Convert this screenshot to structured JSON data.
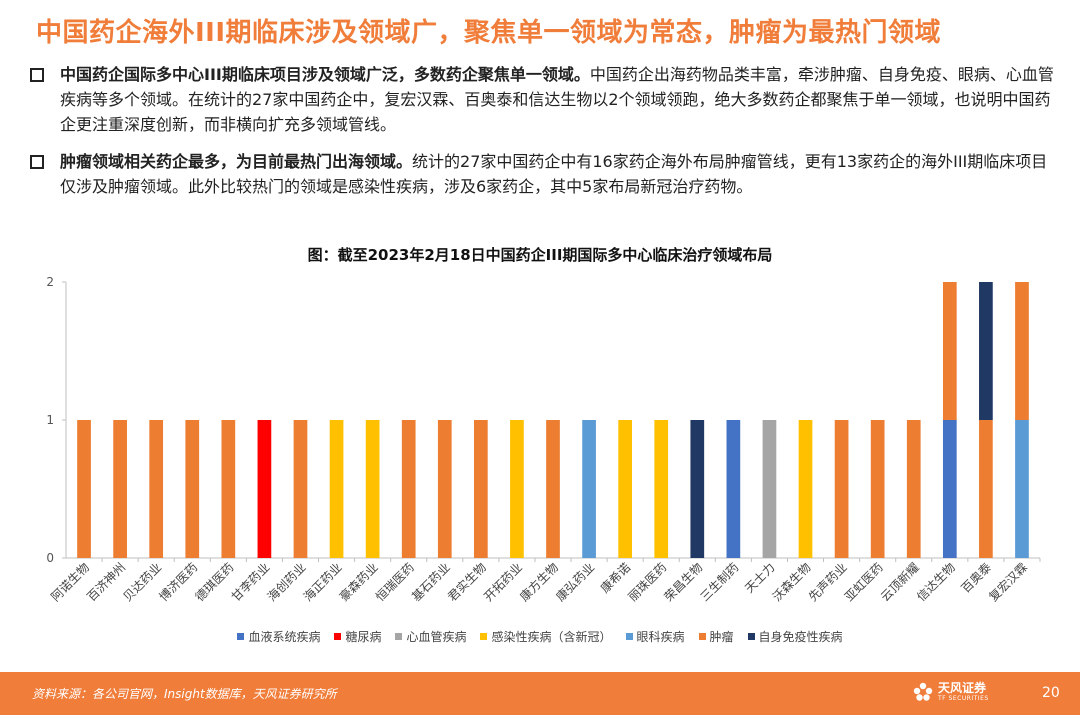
{
  "slide": {
    "title": "中国药企海外III期临床涉及领域广，聚焦单一领域为常态，肿瘤为最热门领域",
    "bullets": [
      {
        "heading": "中国药企国际多中心III期临床项目涉及领域广泛，多数药企聚焦单一领域。",
        "body": "中国药企出海药物品类丰富，牵涉肿瘤、自身免疫、眼病、心血管疾病等多个领域。在统计的27家中国药企中，复宏汉霖、百奥泰和信达生物以2个领域领跑，绝大多数药企都聚焦于单一领域，也说明中国药企更注重深度创新，而非横向扩充多领域管线。"
      },
      {
        "heading": "肿瘤领域相关药企最多，为目前最热门出海领域。",
        "body": "统计的27家中国药企中有16家药企海外布局肿瘤管线，更有13家药企的海外III期临床项目仅涉及肿瘤领域。此外比较热门的领域是感染性疾病，涉及6家药企，其中5家布局新冠治疗药物。"
      }
    ]
  },
  "chart_data": {
    "type": "bar",
    "stacked": true,
    "title": "图：截至2023年2月18日中国药企III期国际多中心临床治疗领域布局",
    "categories": [
      "阿诺生物",
      "百济神州",
      "贝达药业",
      "博济医药",
      "德琪医药",
      "甘李药业",
      "海创药业",
      "海正药业",
      "豪森药业",
      "恒瑞医药",
      "基石药业",
      "君实生物",
      "开拓药业",
      "康方生物",
      "康弘药业",
      "康希诺",
      "丽珠医药",
      "荣昌生物",
      "三生制药",
      "天士力",
      "沃森生物",
      "先声药业",
      "亚虹医药",
      "云顶新耀",
      "信达生物",
      "百奥泰",
      "复宏汉霖"
    ],
    "ylim": [
      0,
      2
    ],
    "yticks": [
      "0",
      "1",
      "2"
    ],
    "series": [
      {
        "name": "血液系统疾病",
        "color": "#4472c4",
        "values": [
          0,
          0,
          0,
          0,
          0,
          0,
          0,
          0,
          0,
          0,
          0,
          0,
          0,
          0,
          0,
          0,
          0,
          0,
          1,
          0,
          0,
          0,
          0,
          0,
          1,
          0,
          0
        ]
      },
      {
        "name": "糖尿病",
        "color": "#ff0000",
        "values": [
          0,
          0,
          0,
          0,
          0,
          1,
          0,
          0,
          0,
          0,
          0,
          0,
          0,
          0,
          0,
          0,
          0,
          0,
          0,
          0,
          0,
          0,
          0,
          0,
          0,
          0,
          0
        ]
      },
      {
        "name": "心血管疾病",
        "color": "#a5a5a5",
        "values": [
          0,
          0,
          0,
          0,
          0,
          0,
          0,
          0,
          0,
          0,
          0,
          0,
          0,
          0,
          0,
          0,
          0,
          0,
          0,
          1,
          0,
          0,
          0,
          0,
          0,
          0,
          0
        ]
      },
      {
        "name": "感染性疾病（含新冠）",
        "color": "#ffc000",
        "values": [
          0,
          0,
          0,
          0,
          0,
          0,
          0,
          1,
          1,
          0,
          0,
          0,
          1,
          0,
          0,
          1,
          1,
          0,
          0,
          0,
          1,
          0,
          0,
          0,
          0,
          0,
          0
        ]
      },
      {
        "name": "眼科疾病",
        "color": "#5b9bd5",
        "values": [
          0,
          0,
          0,
          0,
          0,
          0,
          0,
          0,
          0,
          0,
          0,
          0,
          0,
          0,
          1,
          0,
          0,
          0,
          0,
          0,
          0,
          0,
          0,
          0,
          0,
          0,
          1
        ]
      },
      {
        "name": "肿瘤",
        "color": "#ed7d31",
        "values": [
          1,
          1,
          1,
          1,
          1,
          0,
          1,
          0,
          0,
          1,
          1,
          1,
          0,
          1,
          0,
          0,
          0,
          0,
          0,
          0,
          0,
          1,
          1,
          1,
          1,
          1,
          1
        ]
      },
      {
        "name": "自身免疫性疾病",
        "color": "#203864",
        "values": [
          0,
          0,
          0,
          0,
          0,
          0,
          0,
          0,
          0,
          0,
          0,
          0,
          0,
          0,
          0,
          0,
          0,
          1,
          0,
          0,
          0,
          0,
          0,
          0,
          0,
          1,
          0
        ]
      }
    ]
  },
  "footer": {
    "source": "资料来源：各公司官网，Insight数据库，天风证券研究所",
    "logo_cn": "天风证券",
    "logo_en": "TF SECURITIES",
    "page_number": "20"
  }
}
